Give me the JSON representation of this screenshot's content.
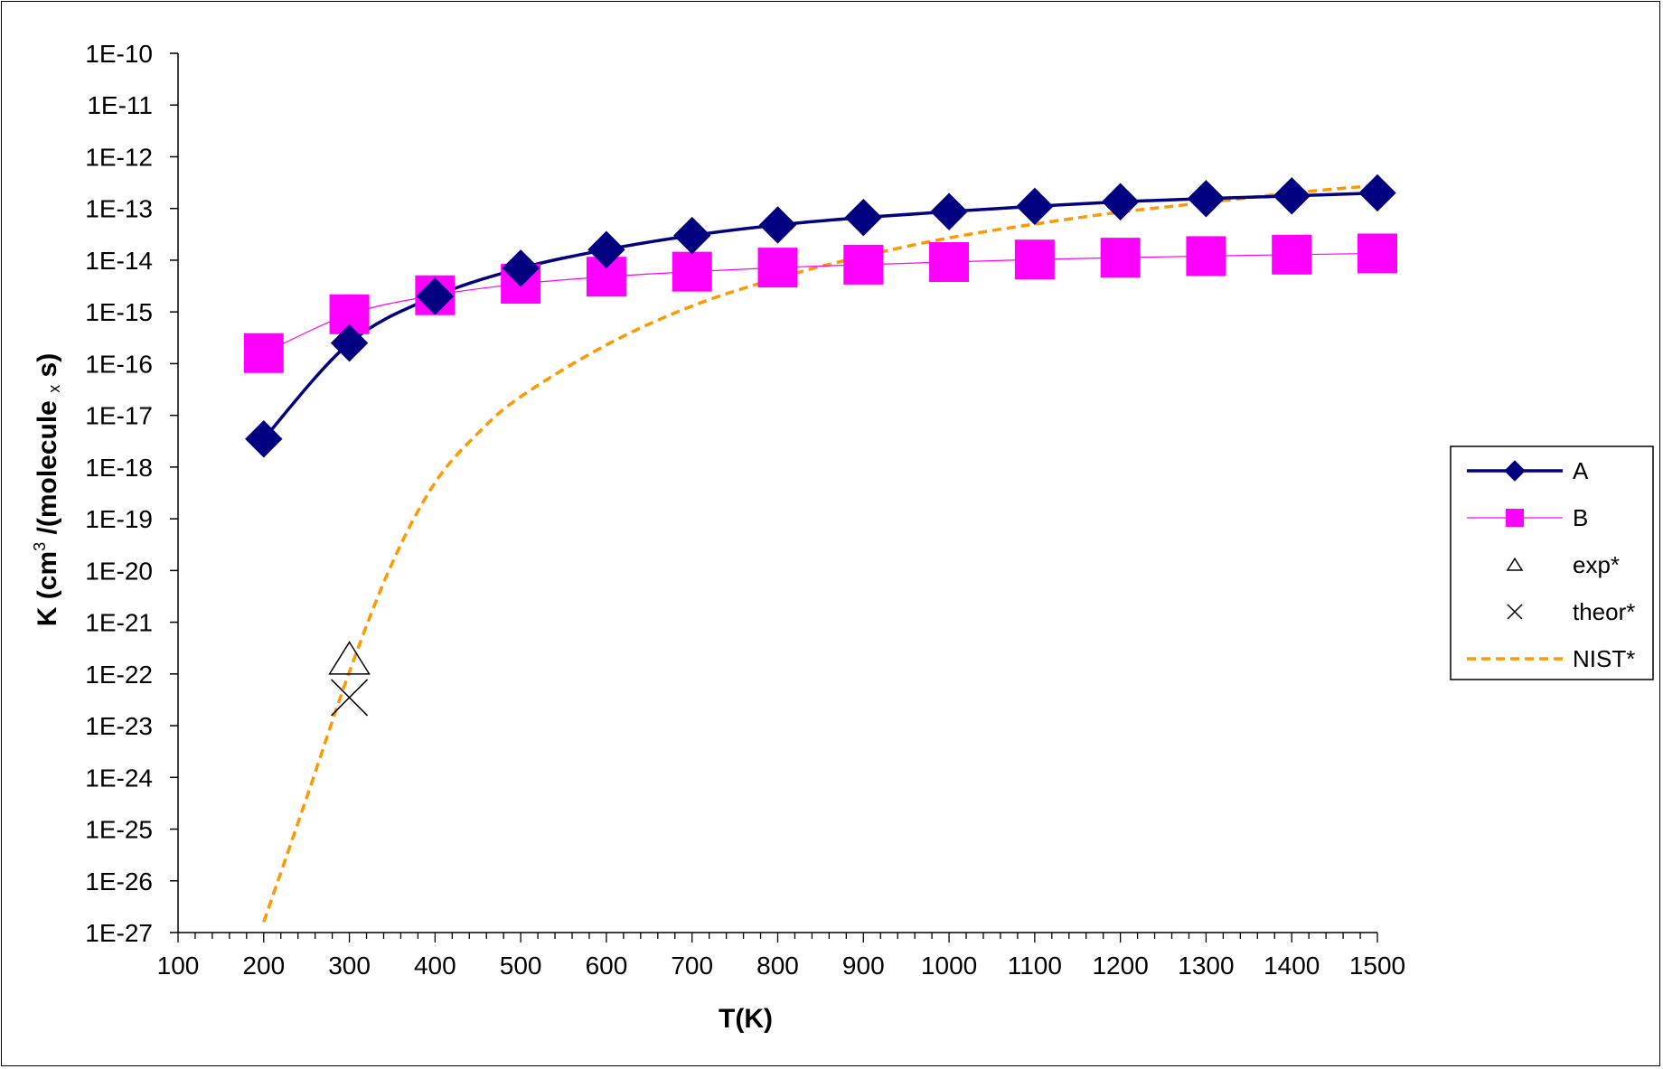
{
  "chart_data": {
    "type": "line",
    "title": "",
    "xlabel": "T(K)",
    "ylabel": {
      "prefix": "K (cm",
      "sup": "3",
      "middle": " /(molecule ",
      "sub": "x",
      "suffix": " s)"
    },
    "xlim": [
      100,
      1500
    ],
    "ylim_log10": [
      -27,
      -10
    ],
    "yscale": "log",
    "x_ticks": [
      "100",
      "200",
      "300",
      "400",
      "500",
      "600",
      "700",
      "800",
      "900",
      "1000",
      "1100",
      "1200",
      "1300",
      "1400",
      "1500"
    ],
    "y_ticks": [
      "1E-10",
      "1E-11",
      "1E-12",
      "1E-13",
      "1E-14",
      "1E-15",
      "1E-16",
      "1E-17",
      "1E-18",
      "1E-19",
      "1E-20",
      "1E-21",
      "1E-22",
      "1E-23",
      "1E-24",
      "1E-25",
      "1E-26",
      "1E-27"
    ],
    "grid": false,
    "legend_position": "right",
    "series": [
      {
        "name": "A",
        "color": "#000080",
        "marker": "diamond",
        "x": [
          200,
          300,
          400,
          500,
          600,
          700,
          800,
          900,
          1000,
          1100,
          1200,
          1300,
          1400,
          1500
        ],
        "y": [
          3.5e-18,
          2.5e-16,
          2e-15,
          7e-15,
          1.6e-14,
          3e-14,
          4.8e-14,
          6.7e-14,
          8.7e-14,
          1.1e-13,
          1.35e-13,
          1.55e-13,
          1.75e-13,
          2e-13
        ]
      },
      {
        "name": "B",
        "color": "#FF00FF",
        "marker": "square",
        "x": [
          200,
          300,
          400,
          500,
          600,
          700,
          800,
          900,
          1000,
          1100,
          1200,
          1300,
          1400,
          1500
        ],
        "y": [
          1.6e-16,
          9e-16,
          2.1e-15,
          3.5e-15,
          4.8e-15,
          6e-15,
          7.2e-15,
          8.2e-15,
          9.2e-15,
          1.03e-14,
          1.12e-14,
          1.2e-14,
          1.28e-14,
          1.35e-14
        ]
      },
      {
        "name": "exp*",
        "color": "#000000",
        "marker": "triangle",
        "x": [
          300
        ],
        "y": [
          1e-22
        ]
      },
      {
        "name": "theor*",
        "color": "#000000",
        "marker": "x",
        "x": [
          300
        ],
        "y": [
          3.5e-23
        ]
      },
      {
        "name": "NIST*",
        "color": "#FF9900",
        "marker": "none",
        "dashed": true,
        "x": [
          200,
          250,
          300,
          350,
          400,
          450,
          500,
          600,
          700,
          800,
          900,
          1000,
          1100,
          1200,
          1300,
          1400,
          1500
        ],
        "y": [
          1.6e-27,
          4e-25,
          1.1e-22,
          1.4e-20,
          5e-19,
          4.5e-18,
          2.3e-17,
          2.3e-16,
          1.3e-15,
          4.5e-15,
          1.2e-14,
          2.7e-14,
          5e-14,
          8.5e-14,
          1.3e-13,
          2e-13,
          2.8e-13
        ]
      }
    ]
  }
}
